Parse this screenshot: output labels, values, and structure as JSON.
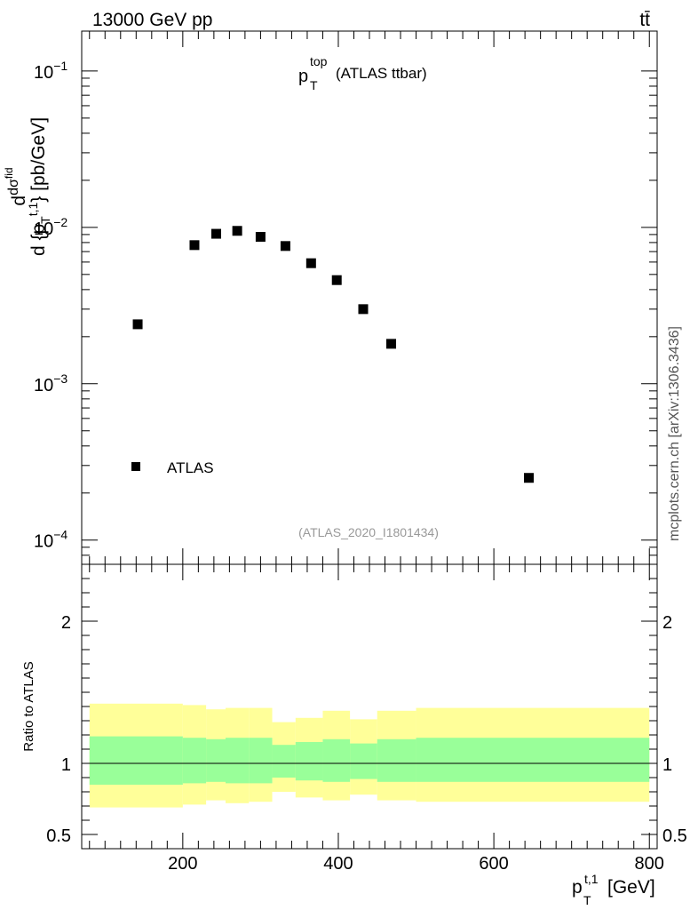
{
  "header": {
    "left": "13000 GeV pp",
    "right": "tt̄"
  },
  "side_label": "mcplots.cern.ch [arXiv:1306.3436]",
  "chart_data": [
    {
      "type": "scatter",
      "title": "p_T^top (ATLAS ttbar)",
      "title_main": "p",
      "title_sup": "top",
      "title_sub": "T",
      "title_rest": "(ATLAS ttbar)",
      "analysis_label": "(ATLAS_2020_I1801434)",
      "ylabel": "dσ^fid / d{p_T^t,1} [pb/GeV]",
      "yscale": "log",
      "ylim": [
        7e-05,
        0.18
      ],
      "xlim": [
        70,
        810
      ],
      "ytick_labels": [
        {
          "value": 0.1,
          "base": "10",
          "exp": "−1"
        },
        {
          "value": 0.01,
          "base": "10",
          "exp": "−2"
        },
        {
          "value": 0.001,
          "base": "10",
          "exp": "−3"
        },
        {
          "value": 0.0001,
          "base": "10",
          "exp": "−4"
        }
      ],
      "legend": {
        "position": "bottom-left",
        "entries": [
          "ATLAS"
        ]
      },
      "series": [
        {
          "name": "ATLAS",
          "marker": "square",
          "color": "#000000",
          "x": [
            142,
            215,
            243,
            270,
            300,
            332,
            365,
            398,
            432,
            468,
            645
          ],
          "y": [
            0.0024,
            0.0077,
            0.0091,
            0.0095,
            0.0087,
            0.0076,
            0.0059,
            0.0046,
            0.003,
            0.0018,
            0.00025
          ]
        }
      ]
    },
    {
      "type": "area",
      "ylabel": "Ratio to ATLAS",
      "xlabel": "p_T^t,1 [GeV]",
      "xlabel_main": "p",
      "xlabel_sup": "t,1",
      "xlabel_sub": "T",
      "xlabel_unit": "[GeV]",
      "ylim": [
        0.4,
        2.4
      ],
      "xlim": [
        70,
        810
      ],
      "yticks": [
        0.5,
        1,
        2
      ],
      "ytick_labels": [
        "0.5",
        "1",
        "2"
      ],
      "xticks": [
        200,
        400,
        600,
        800
      ],
      "xtick_labels": [
        "200",
        "400",
        "600",
        "800"
      ],
      "reference_line": 1,
      "colors": {
        "outer_band": "#ffff99",
        "inner_band": "#99ff99"
      },
      "bands": [
        {
          "x0": 80,
          "x1": 200,
          "inner": [
            0.85,
            1.19
          ],
          "outer": [
            0.69,
            1.42
          ]
        },
        {
          "x0": 200,
          "x1": 230,
          "inner": [
            0.86,
            1.18
          ],
          "outer": [
            0.71,
            1.41
          ]
        },
        {
          "x0": 230,
          "x1": 255,
          "inner": [
            0.87,
            1.17
          ],
          "outer": [
            0.74,
            1.38
          ]
        },
        {
          "x0": 255,
          "x1": 285,
          "inner": [
            0.86,
            1.18
          ],
          "outer": [
            0.72,
            1.39
          ]
        },
        {
          "x0": 285,
          "x1": 315,
          "inner": [
            0.86,
            1.18
          ],
          "outer": [
            0.73,
            1.39
          ]
        },
        {
          "x0": 315,
          "x1": 345,
          "inner": [
            0.9,
            1.13
          ],
          "outer": [
            0.8,
            1.29
          ]
        },
        {
          "x0": 345,
          "x1": 380,
          "inner": [
            0.88,
            1.15
          ],
          "outer": [
            0.76,
            1.32
          ]
        },
        {
          "x0": 380,
          "x1": 415,
          "inner": [
            0.87,
            1.17
          ],
          "outer": [
            0.74,
            1.37
          ]
        },
        {
          "x0": 415,
          "x1": 450,
          "inner": [
            0.89,
            1.14
          ],
          "outer": [
            0.78,
            1.31
          ]
        },
        {
          "x0": 450,
          "x1": 500,
          "inner": [
            0.87,
            1.17
          ],
          "outer": [
            0.74,
            1.37
          ]
        },
        {
          "x0": 500,
          "x1": 800,
          "inner": [
            0.87,
            1.18
          ],
          "outer": [
            0.73,
            1.39
          ]
        }
      ]
    }
  ]
}
